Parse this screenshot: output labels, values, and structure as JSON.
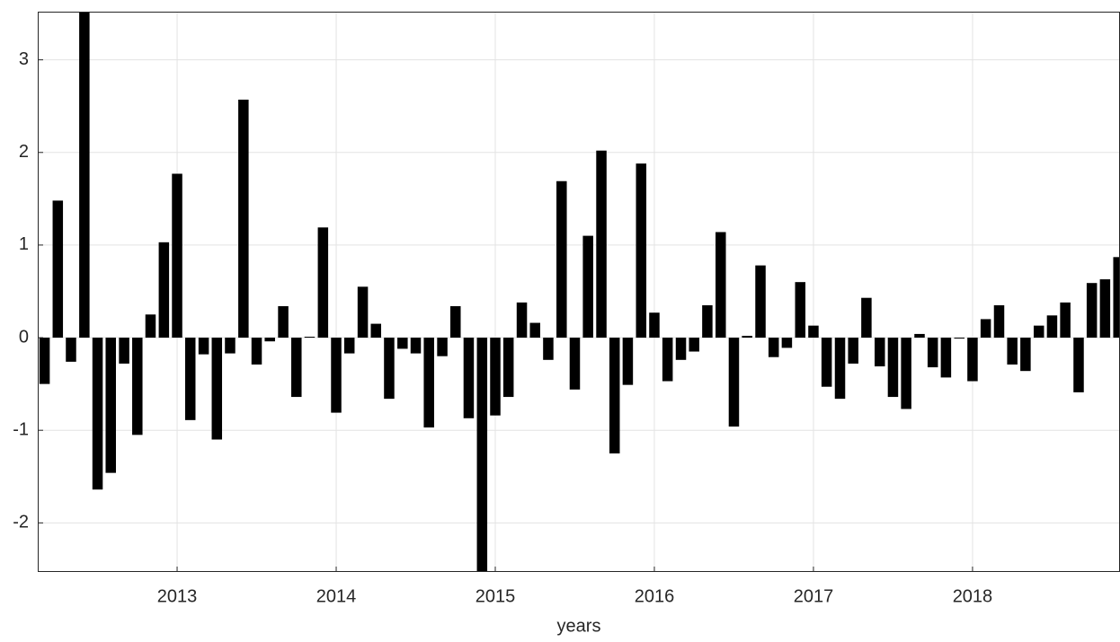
{
  "chart_data": {
    "type": "bar",
    "xlabel": "years",
    "color": "#000000",
    "grid": true,
    "x": [
      2012.167,
      2012.25,
      2012.333,
      2012.417,
      2012.5,
      2012.583,
      2012.667,
      2012.75,
      2012.833,
      2012.917,
      2013,
      2013.083,
      2013.167,
      2013.25,
      2013.333,
      2013.417,
      2013.5,
      2013.583,
      2013.667,
      2013.75,
      2013.833,
      2013.917,
      2014,
      2014.083,
      2014.167,
      2014.25,
      2014.333,
      2014.417,
      2014.5,
      2014.583,
      2014.667,
      2014.75,
      2014.833,
      2014.917,
      2015,
      2015.083,
      2015.167,
      2015.25,
      2015.333,
      2015.417,
      2015.5,
      2015.583,
      2015.667,
      2015.75,
      2015.833,
      2015.917,
      2016,
      2016.083,
      2016.167,
      2016.25,
      2016.333,
      2016.417,
      2016.5,
      2016.583,
      2016.667,
      2016.75,
      2016.833,
      2016.917,
      2017,
      2017.083,
      2017.167,
      2017.25,
      2017.333,
      2017.417,
      2017.5,
      2017.583,
      2017.667,
      2017.75,
      2017.833,
      2017.917,
      2018,
      2018.083,
      2018.167,
      2018.25,
      2018.333,
      2018.417,
      2018.5,
      2018.583,
      2018.667,
      2018.75,
      2018.833,
      2018.917
    ],
    "values": [
      -0.5,
      1.48,
      -0.26,
      3.6,
      -1.64,
      -1.46,
      -0.28,
      -1.05,
      0.25,
      1.03,
      1.77,
      -0.89,
      -0.18,
      -1.1,
      -0.17,
      2.57,
      -0.29,
      -0.04,
      0.34,
      -0.64,
      0.01,
      1.19,
      -0.81,
      -0.17,
      0.55,
      0.15,
      -0.66,
      -0.12,
      -0.17,
      -0.97,
      -0.2,
      0.34,
      -0.87,
      -2.8,
      -0.84,
      -0.64,
      0.38,
      0.16,
      -0.24,
      1.69,
      -0.56,
      1.1,
      2.02,
      -1.25,
      -0.51,
      1.88,
      0.27,
      -0.47,
      -0.24,
      -0.15,
      0.35,
      1.14,
      -0.96,
      0.02,
      0.78,
      -0.21,
      -0.11,
      0.6,
      0.13,
      -0.53,
      -0.66,
      -0.28,
      0.43,
      -0.31,
      -0.64,
      -0.77,
      0.04,
      -0.32,
      -0.43,
      -0.01,
      -0.47,
      0.2,
      0.35,
      -0.29,
      -0.36,
      0.13,
      0.24,
      0.38,
      -0.59,
      0.59,
      0.63,
      0.87
    ],
    "xlim": [
      2012.124,
      2018.927
    ],
    "xticks": [
      2013,
      2014,
      2015,
      2016,
      2017,
      2018
    ],
    "ylim": [
      -2.53,
      3.52
    ],
    "yticks": [
      -2,
      -1,
      0,
      1,
      2,
      3
    ]
  }
}
